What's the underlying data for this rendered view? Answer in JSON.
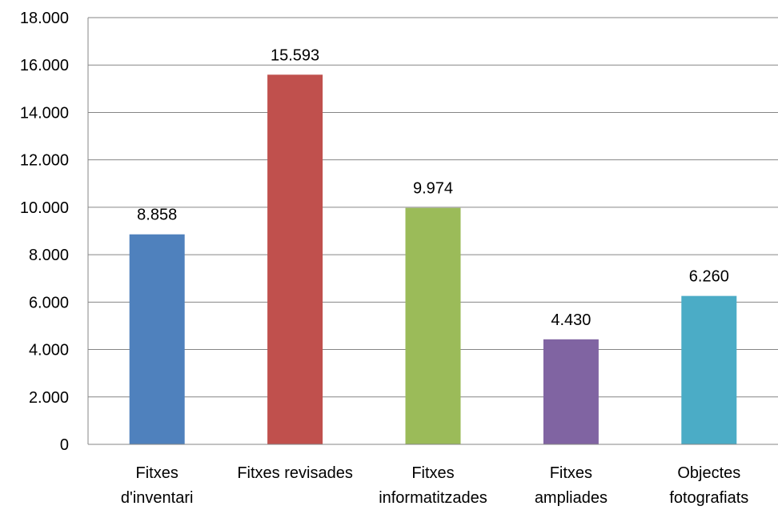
{
  "chart_data": {
    "type": "bar",
    "categories": [
      [
        "Fitxes",
        "d'inventari"
      ],
      [
        "Fitxes revisades"
      ],
      [
        "Fitxes",
        "informatitzades"
      ],
      [
        "Fitxes",
        "ampliades"
      ],
      [
        "Objectes",
        "fotografiats"
      ]
    ],
    "values": [
      8858,
      15593,
      9974,
      4430,
      6260
    ],
    "value_labels": [
      "8.858",
      "15.593",
      "9.974",
      "4.430",
      "6.260"
    ],
    "bar_colors": [
      "#4F81BD",
      "#C0504D",
      "#9BBB59",
      "#8064A2",
      "#4BACC6"
    ],
    "ylim": [
      0,
      18000
    ],
    "yticks": [
      0,
      2000,
      4000,
      6000,
      8000,
      10000,
      12000,
      14000,
      16000,
      18000
    ],
    "ytick_labels": [
      "0",
      "2.000",
      "4.000",
      "6.000",
      "8.000",
      "10.000",
      "12.000",
      "14.000",
      "16.000",
      "18.000"
    ],
    "grid": true,
    "legend": "none",
    "title": "",
    "xlabel": "",
    "ylabel": ""
  }
}
